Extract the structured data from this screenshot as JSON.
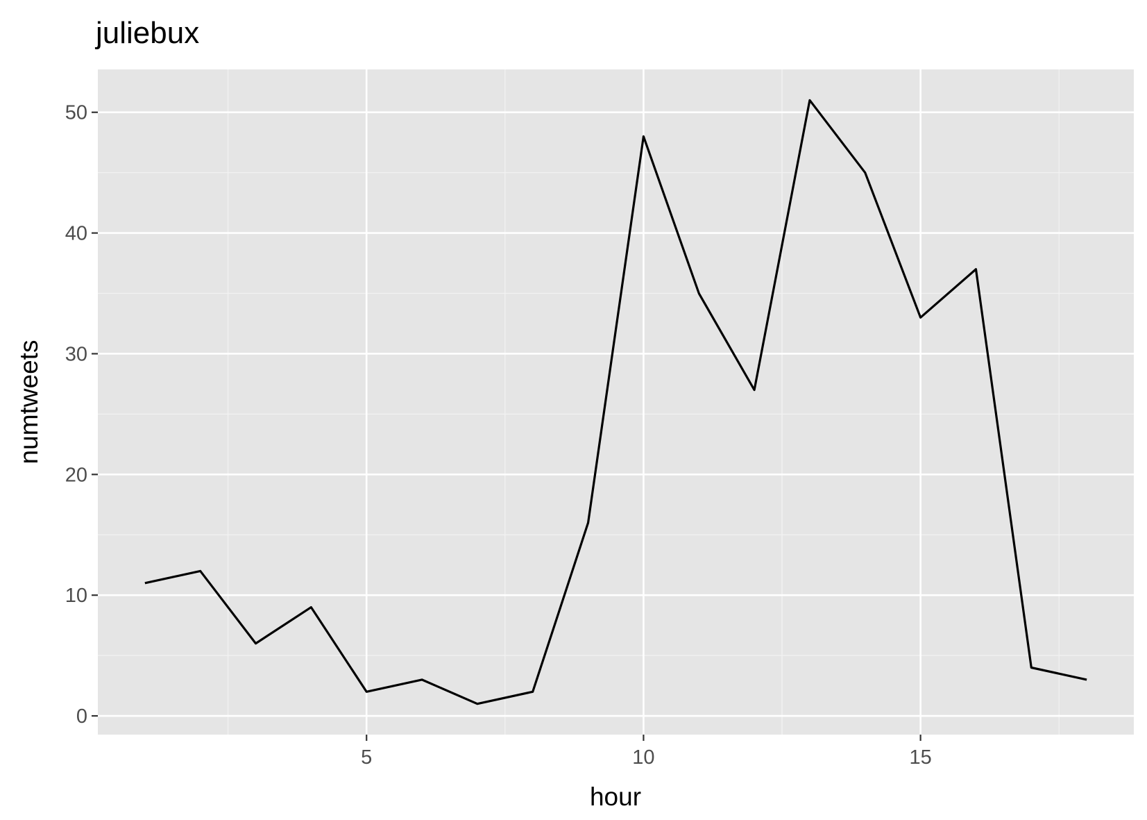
{
  "chart_data": {
    "type": "line",
    "title": "juliebux",
    "xlabel": "hour",
    "ylabel": "numtweets",
    "x": [
      1,
      2,
      3,
      4,
      5,
      6,
      7,
      8,
      9,
      10,
      11,
      12,
      13,
      14,
      15,
      16,
      17,
      18
    ],
    "series": [
      {
        "values": [
          11,
          12,
          6,
          9,
          2,
          3,
          1,
          2,
          16,
          48,
          35,
          27,
          51,
          45,
          33,
          37,
          4,
          3
        ]
      }
    ],
    "xlim": [
      0.15,
      18.85
    ],
    "ylim": [
      -1.55,
      53.55
    ],
    "x_ticks": [
      5,
      10,
      15
    ],
    "x_tick_labels": [
      "5",
      "10",
      "15"
    ],
    "y_ticks": [
      0,
      10,
      20,
      30,
      40,
      50
    ],
    "y_tick_labels": [
      "0",
      "10",
      "20",
      "30",
      "40",
      "50"
    ],
    "grid": true,
    "legend": "none",
    "colors": {
      "panel_background": "#e5e5e5",
      "grid_major": "#ffffff",
      "grid_minor": "#f2f2f2",
      "line": "#000000",
      "tick_label": "#4d4d4d",
      "text": "#000000"
    }
  }
}
